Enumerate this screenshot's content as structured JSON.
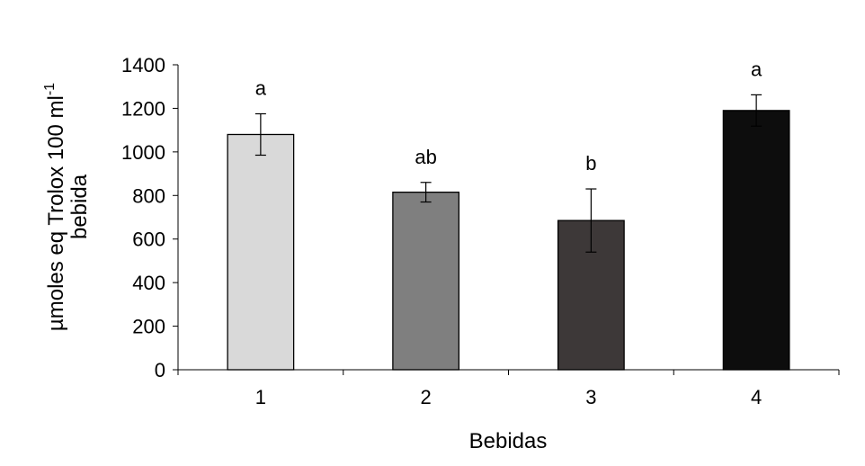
{
  "chart_data": {
    "type": "bar",
    "categories": [
      "1",
      "2",
      "3",
      "4"
    ],
    "values": [
      1080,
      815,
      685,
      1190
    ],
    "error": [
      95,
      45,
      145,
      72
    ],
    "significance": [
      "a",
      "ab",
      "b",
      "a"
    ],
    "bar_colors": [
      "#d9d9d9",
      "#7f7f7f",
      "#3d3838",
      "#0d0d0d"
    ],
    "xlabel": "Bebidas",
    "ylabel_main": "µmoles eq Trolox 100 ml",
    "ylabel_sup": "-1",
    "ylabel_line2": "bebida",
    "ylim": [
      0,
      1400
    ],
    "yticks": [
      0,
      200,
      400,
      600,
      800,
      1000,
      1200,
      1400
    ],
    "grid": false
  }
}
